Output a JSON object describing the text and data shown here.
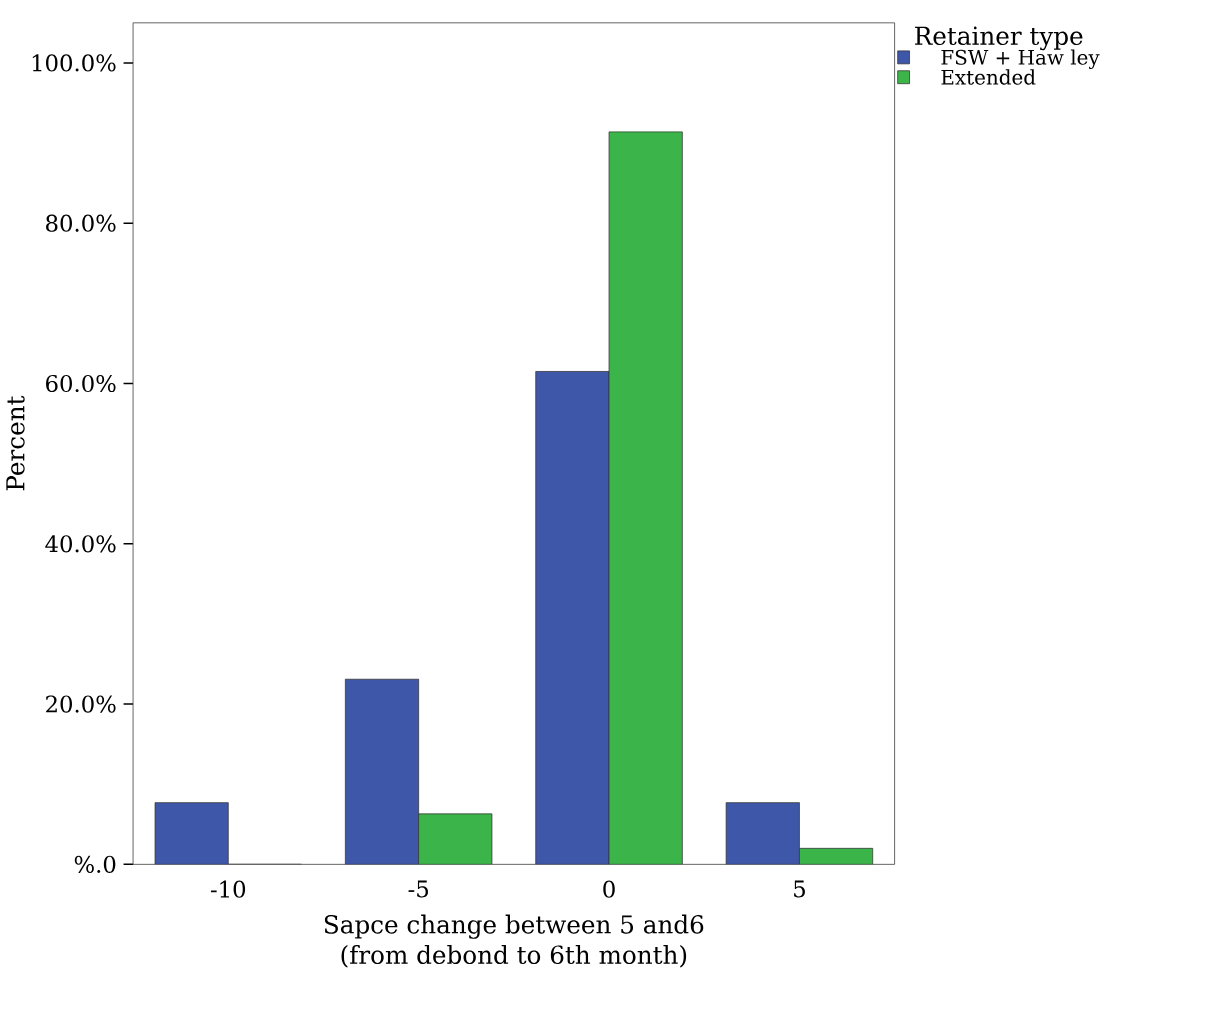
{
  "chart_data": {
    "type": "bar",
    "xlabel": "Sapce change between 5 and6\n(from debond to 6th month)",
    "ylabel": "Percent",
    "legend_title": "Retainer type",
    "categories": [
      "-10",
      "-5",
      "0",
      "5"
    ],
    "series": [
      {
        "name": "FSW + Haw ley",
        "color": "#3f57a8",
        "values": [
          7.7,
          23.1,
          61.5,
          7.7
        ]
      },
      {
        "name": "Extended",
        "color": "#3bb54a",
        "values": [
          0,
          6.3,
          91.4,
          2.0
        ]
      }
    ],
    "ylim": [
      0,
      105
    ],
    "yticks": [
      {
        "value": 0,
        "label": "%.0"
      },
      {
        "value": 20,
        "label": "20.0%"
      },
      {
        "value": 40,
        "label": "40.0%"
      },
      {
        "value": 60,
        "label": "60.0%"
      },
      {
        "value": 80,
        "label": "80.0%"
      },
      {
        "value": 100,
        "label": "100.0%"
      }
    ],
    "legend": "top right"
  }
}
